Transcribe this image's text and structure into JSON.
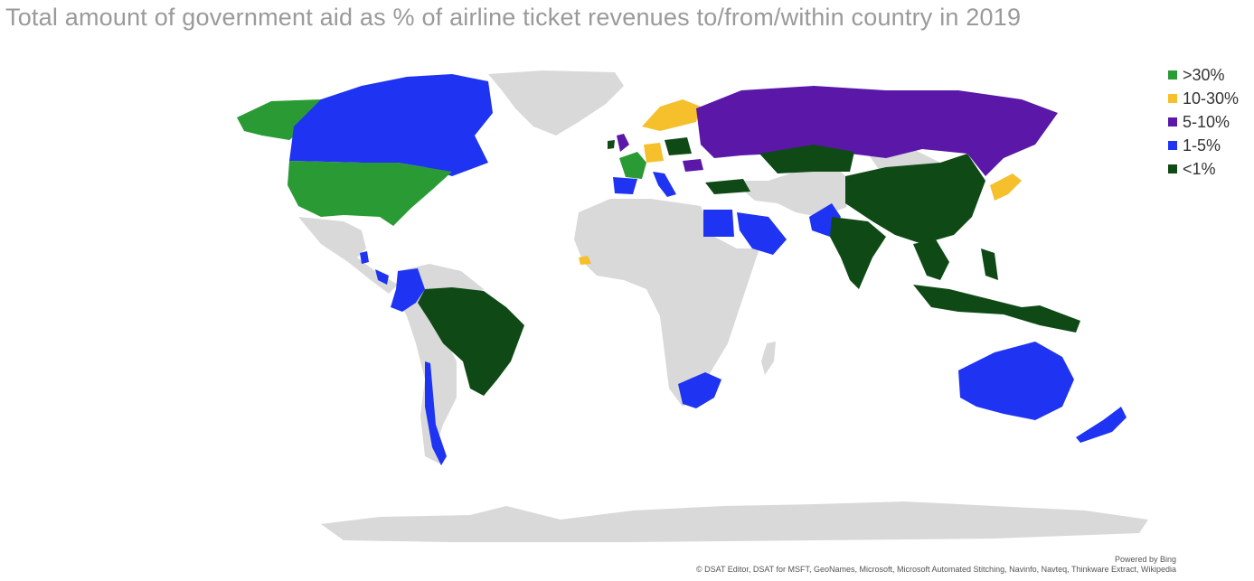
{
  "title": "Total amount of government aid as % of airline ticket revenues to/from/within country in 2019",
  "legend": [
    {
      "label": ">30%",
      "color": "#2a9a35"
    },
    {
      "label": "10-30%",
      "color": "#f5c02c"
    },
    {
      "label": "5-10%",
      "color": "#5a17a8"
    },
    {
      "label": "1-5%",
      "color": "#1f33f2"
    },
    {
      "label": "<1%",
      "color": "#0f4a16"
    }
  ],
  "no_data_color": "#d9d9d9",
  "credits": {
    "powered_by": "Powered by Bing",
    "attribution": "© DSAT Editor, DSAT for MSFT, GeoNames, Microsoft, Microsoft Automated Stitching, Navinfo, Navteq, Thinkware Extract, Wikipedia"
  }
}
